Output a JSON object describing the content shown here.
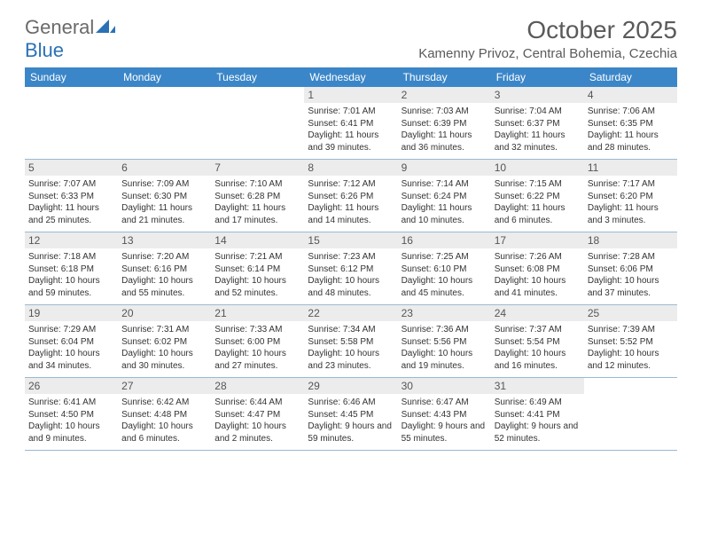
{
  "brand": {
    "general": "General",
    "blue": "Blue"
  },
  "header": {
    "month_title": "October 2025",
    "location": "Kamenny Privoz, Central Bohemia, Czechia"
  },
  "colors": {
    "header_bar": "#3b86c8",
    "header_bar_text": "#ffffff",
    "daynum_bg": "#ececec",
    "row_divider": "#9ab9d3",
    "text": "#333333",
    "title_text": "#5a5a5a",
    "logo_general": "#6a6a6a",
    "logo_blue": "#2a72b5",
    "background": "#ffffff"
  },
  "typography": {
    "month_title_size": 28,
    "location_size": 15,
    "dayhead_size": 12,
    "daynum_size": 12,
    "info_size": 10,
    "logo_size": 22
  },
  "day_names": [
    "Sunday",
    "Monday",
    "Tuesday",
    "Wednesday",
    "Thursday",
    "Friday",
    "Saturday"
  ],
  "weeks": [
    [
      {
        "n": "",
        "sr": "",
        "ss": "",
        "dl": ""
      },
      {
        "n": "",
        "sr": "",
        "ss": "",
        "dl": ""
      },
      {
        "n": "",
        "sr": "",
        "ss": "",
        "dl": ""
      },
      {
        "n": "1",
        "sr": "Sunrise: 7:01 AM",
        "ss": "Sunset: 6:41 PM",
        "dl": "Daylight: 11 hours and 39 minutes."
      },
      {
        "n": "2",
        "sr": "Sunrise: 7:03 AM",
        "ss": "Sunset: 6:39 PM",
        "dl": "Daylight: 11 hours and 36 minutes."
      },
      {
        "n": "3",
        "sr": "Sunrise: 7:04 AM",
        "ss": "Sunset: 6:37 PM",
        "dl": "Daylight: 11 hours and 32 minutes."
      },
      {
        "n": "4",
        "sr": "Sunrise: 7:06 AM",
        "ss": "Sunset: 6:35 PM",
        "dl": "Daylight: 11 hours and 28 minutes."
      }
    ],
    [
      {
        "n": "5",
        "sr": "Sunrise: 7:07 AM",
        "ss": "Sunset: 6:33 PM",
        "dl": "Daylight: 11 hours and 25 minutes."
      },
      {
        "n": "6",
        "sr": "Sunrise: 7:09 AM",
        "ss": "Sunset: 6:30 PM",
        "dl": "Daylight: 11 hours and 21 minutes."
      },
      {
        "n": "7",
        "sr": "Sunrise: 7:10 AM",
        "ss": "Sunset: 6:28 PM",
        "dl": "Daylight: 11 hours and 17 minutes."
      },
      {
        "n": "8",
        "sr": "Sunrise: 7:12 AM",
        "ss": "Sunset: 6:26 PM",
        "dl": "Daylight: 11 hours and 14 minutes."
      },
      {
        "n": "9",
        "sr": "Sunrise: 7:14 AM",
        "ss": "Sunset: 6:24 PM",
        "dl": "Daylight: 11 hours and 10 minutes."
      },
      {
        "n": "10",
        "sr": "Sunrise: 7:15 AM",
        "ss": "Sunset: 6:22 PM",
        "dl": "Daylight: 11 hours and 6 minutes."
      },
      {
        "n": "11",
        "sr": "Sunrise: 7:17 AM",
        "ss": "Sunset: 6:20 PM",
        "dl": "Daylight: 11 hours and 3 minutes."
      }
    ],
    [
      {
        "n": "12",
        "sr": "Sunrise: 7:18 AM",
        "ss": "Sunset: 6:18 PM",
        "dl": "Daylight: 10 hours and 59 minutes."
      },
      {
        "n": "13",
        "sr": "Sunrise: 7:20 AM",
        "ss": "Sunset: 6:16 PM",
        "dl": "Daylight: 10 hours and 55 minutes."
      },
      {
        "n": "14",
        "sr": "Sunrise: 7:21 AM",
        "ss": "Sunset: 6:14 PM",
        "dl": "Daylight: 10 hours and 52 minutes."
      },
      {
        "n": "15",
        "sr": "Sunrise: 7:23 AM",
        "ss": "Sunset: 6:12 PM",
        "dl": "Daylight: 10 hours and 48 minutes."
      },
      {
        "n": "16",
        "sr": "Sunrise: 7:25 AM",
        "ss": "Sunset: 6:10 PM",
        "dl": "Daylight: 10 hours and 45 minutes."
      },
      {
        "n": "17",
        "sr": "Sunrise: 7:26 AM",
        "ss": "Sunset: 6:08 PM",
        "dl": "Daylight: 10 hours and 41 minutes."
      },
      {
        "n": "18",
        "sr": "Sunrise: 7:28 AM",
        "ss": "Sunset: 6:06 PM",
        "dl": "Daylight: 10 hours and 37 minutes."
      }
    ],
    [
      {
        "n": "19",
        "sr": "Sunrise: 7:29 AM",
        "ss": "Sunset: 6:04 PM",
        "dl": "Daylight: 10 hours and 34 minutes."
      },
      {
        "n": "20",
        "sr": "Sunrise: 7:31 AM",
        "ss": "Sunset: 6:02 PM",
        "dl": "Daylight: 10 hours and 30 minutes."
      },
      {
        "n": "21",
        "sr": "Sunrise: 7:33 AM",
        "ss": "Sunset: 6:00 PM",
        "dl": "Daylight: 10 hours and 27 minutes."
      },
      {
        "n": "22",
        "sr": "Sunrise: 7:34 AM",
        "ss": "Sunset: 5:58 PM",
        "dl": "Daylight: 10 hours and 23 minutes."
      },
      {
        "n": "23",
        "sr": "Sunrise: 7:36 AM",
        "ss": "Sunset: 5:56 PM",
        "dl": "Daylight: 10 hours and 19 minutes."
      },
      {
        "n": "24",
        "sr": "Sunrise: 7:37 AM",
        "ss": "Sunset: 5:54 PM",
        "dl": "Daylight: 10 hours and 16 minutes."
      },
      {
        "n": "25",
        "sr": "Sunrise: 7:39 AM",
        "ss": "Sunset: 5:52 PM",
        "dl": "Daylight: 10 hours and 12 minutes."
      }
    ],
    [
      {
        "n": "26",
        "sr": "Sunrise: 6:41 AM",
        "ss": "Sunset: 4:50 PM",
        "dl": "Daylight: 10 hours and 9 minutes."
      },
      {
        "n": "27",
        "sr": "Sunrise: 6:42 AM",
        "ss": "Sunset: 4:48 PM",
        "dl": "Daylight: 10 hours and 6 minutes."
      },
      {
        "n": "28",
        "sr": "Sunrise: 6:44 AM",
        "ss": "Sunset: 4:47 PM",
        "dl": "Daylight: 10 hours and 2 minutes."
      },
      {
        "n": "29",
        "sr": "Sunrise: 6:46 AM",
        "ss": "Sunset: 4:45 PM",
        "dl": "Daylight: 9 hours and 59 minutes."
      },
      {
        "n": "30",
        "sr": "Sunrise: 6:47 AM",
        "ss": "Sunset: 4:43 PM",
        "dl": "Daylight: 9 hours and 55 minutes."
      },
      {
        "n": "31",
        "sr": "Sunrise: 6:49 AM",
        "ss": "Sunset: 4:41 PM",
        "dl": "Daylight: 9 hours and 52 minutes."
      },
      {
        "n": "",
        "sr": "",
        "ss": "",
        "dl": ""
      }
    ]
  ]
}
